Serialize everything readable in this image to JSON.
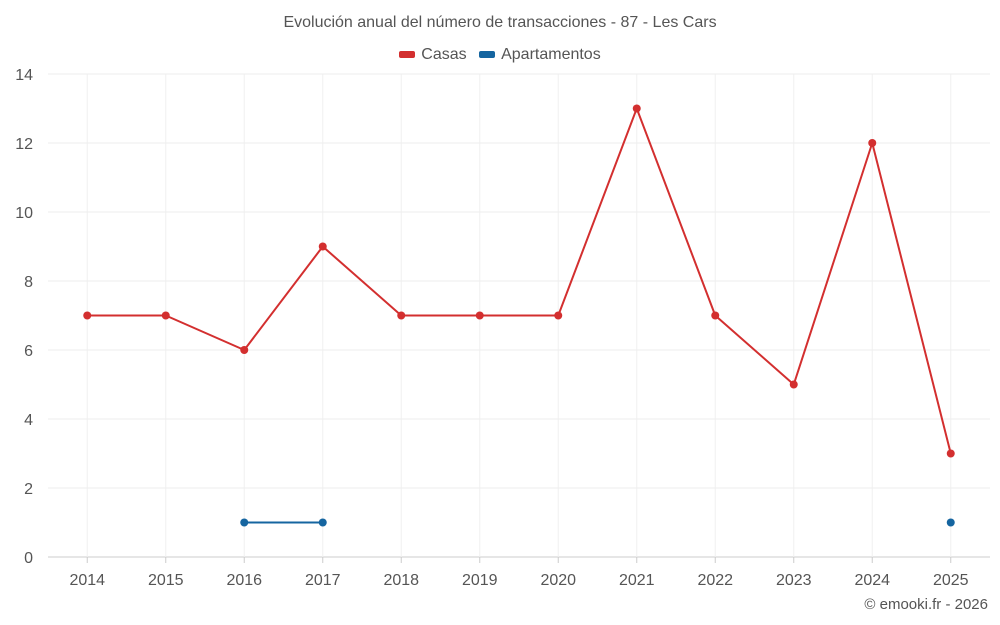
{
  "chart_data": {
    "type": "line",
    "title": "Evolución anual del número de transacciones - 87 - Les Cars",
    "categories": [
      "2014",
      "2015",
      "2016",
      "2017",
      "2018",
      "2019",
      "2020",
      "2021",
      "2022",
      "2023",
      "2024",
      "2025"
    ],
    "ylim": [
      0,
      14
    ],
    "yticks": [
      0,
      2,
      4,
      6,
      8,
      10,
      12,
      14
    ],
    "grid": true,
    "legend_position": "top-center",
    "series": [
      {
        "name": "Casas",
        "color": "#d32f2f",
        "values": [
          7,
          7,
          6,
          9,
          7,
          7,
          7,
          13,
          7,
          5,
          12,
          3
        ]
      },
      {
        "name": "Apartamentos",
        "color": "#1565a0",
        "values": [
          null,
          null,
          1,
          1,
          null,
          null,
          null,
          null,
          null,
          null,
          null,
          1
        ]
      }
    ]
  },
  "footer": {
    "credit": "© emooki.fr - 2026"
  }
}
